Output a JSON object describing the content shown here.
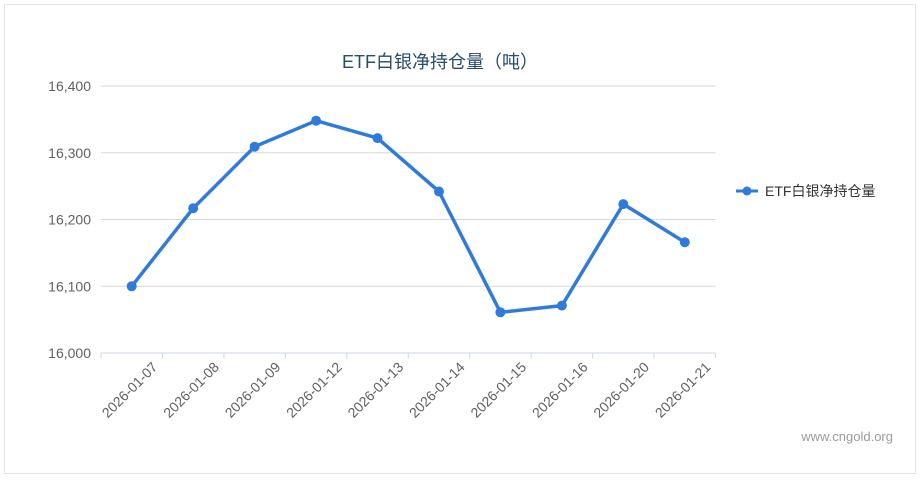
{
  "panel": {
    "watermark": "www.cngold.org"
  },
  "style": {
    "line_color": "#2f7bdb",
    "title_color": "#274b6d",
    "axis_label_color": "#606060",
    "legend_text_color": "#333333",
    "gridline_color": "#d9d9d9",
    "axis_line_color": "#ccd6eb",
    "watermark_color": "#9b9b9b",
    "border_color": "#e4e4e4"
  },
  "chart_data": {
    "type": "line",
    "title": "ETF白银净持仓量（吨）",
    "categories": [
      "2026-01-07",
      "2026-01-08",
      "2026-01-09",
      "2026-01-12",
      "2026-01-13",
      "2026-01-14",
      "2026-01-15",
      "2026-01-16",
      "2026-01-20",
      "2026-01-21"
    ],
    "series": [
      {
        "name": "ETF白银净持仓量",
        "values": [
          16100,
          16217,
          16309,
          16348,
          16322,
          16242,
          16061,
          16071,
          16223,
          16166
        ]
      }
    ],
    "xlabel": "",
    "ylabel": "",
    "ylim": [
      16000,
      16400
    ],
    "ytick_interval": 100,
    "ytick_labels": [
      "16,000",
      "16,100",
      "16,200",
      "16,300",
      "16,400"
    ],
    "grid": true,
    "legend_position": "right",
    "x_label_rotation": -45
  }
}
